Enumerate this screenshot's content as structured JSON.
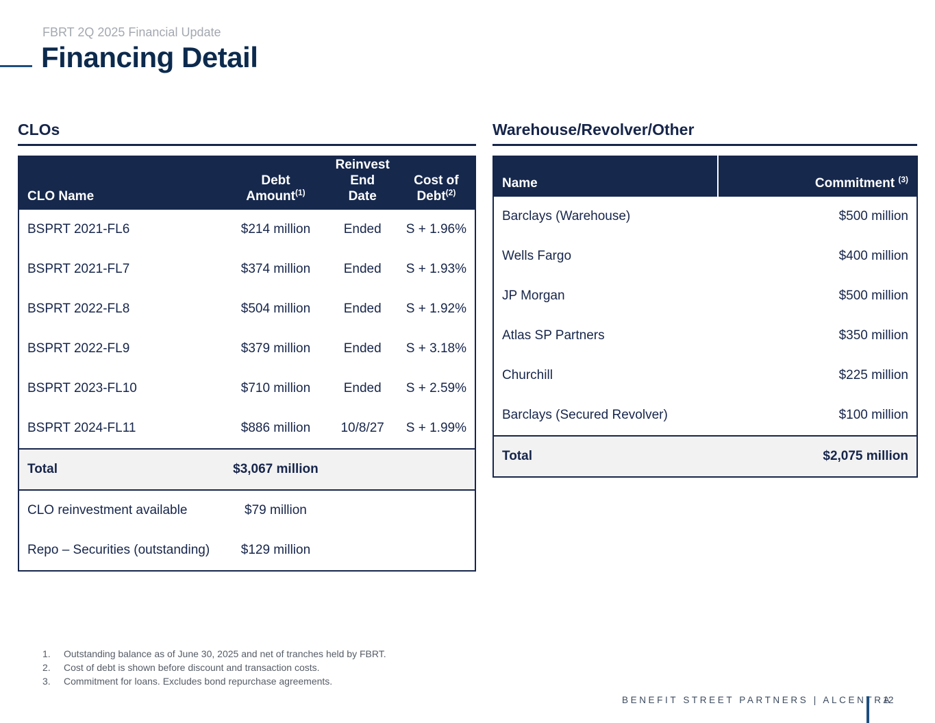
{
  "header": {
    "subtitle": "FBRT 2Q 2025 Financial Update",
    "title": "Financing Detail"
  },
  "clos": {
    "section_title": "CLOs",
    "columns": {
      "name": "CLO Name",
      "debt_line1": "Debt",
      "debt_line2": "Amount",
      "debt_sup": "(1)",
      "reinvest_line1": "Reinvest",
      "reinvest_line2": "End Date",
      "cost_line1": "Cost of",
      "cost_line2": "Debt",
      "cost_sup": "(2)"
    },
    "rows": [
      {
        "name": "BSPRT 2021-FL6",
        "debt": "$214 million",
        "reinvest": "Ended",
        "cost": "S + 1.96%"
      },
      {
        "name": "BSPRT 2021-FL7",
        "debt": "$374 million",
        "reinvest": "Ended",
        "cost": "S + 1.93%"
      },
      {
        "name": "BSPRT 2022-FL8",
        "debt": "$504 million",
        "reinvest": "Ended",
        "cost": "S + 1.92%"
      },
      {
        "name": "BSPRT 2022-FL9",
        "debt": "$379 million",
        "reinvest": "Ended",
        "cost": "S + 3.18%"
      },
      {
        "name": "BSPRT 2023-FL10",
        "debt": "$710 million",
        "reinvest": "Ended",
        "cost": "S + 2.59%"
      },
      {
        "name": "BSPRT 2024-FL11",
        "debt": "$886 million",
        "reinvest": "10/8/27",
        "cost": "S + 1.99%"
      }
    ],
    "total": {
      "label": "Total",
      "debt": "$3,067 million"
    },
    "extra_rows": [
      {
        "label": "CLO reinvestment available",
        "value": "$79 million"
      },
      {
        "label": "Repo – Securities (outstanding)",
        "value": "$129 million"
      }
    ]
  },
  "warehouse": {
    "section_title": "Warehouse/Revolver/Other",
    "columns": {
      "name": "Name",
      "commitment": "Commitment ",
      "commitment_sup": "(3)"
    },
    "rows": [
      {
        "name": "Barclays (Warehouse)",
        "commitment": "$500 million"
      },
      {
        "name": "Wells Fargo",
        "commitment": "$400 million"
      },
      {
        "name": "JP Morgan",
        "commitment": "$500 million"
      },
      {
        "name": "Atlas SP Partners",
        "commitment": "$350 million"
      },
      {
        "name": "Churchill",
        "commitment": "$225 million"
      },
      {
        "name": "Barclays (Secured Revolver)",
        "commitment": "$100 million"
      }
    ],
    "total": {
      "label": "Total",
      "commitment": "$2,075 million"
    }
  },
  "footnotes": [
    {
      "num": "1.",
      "text": "Outstanding balance as of June 30, 2025 and net of tranches held by FBRT."
    },
    {
      "num": "2.",
      "text": "Cost of debt is shown before discount and transaction costs."
    },
    {
      "num": "3.",
      "text": "Commitment for loans.  Excludes bond repurchase agreements."
    }
  ],
  "footer": {
    "brand": "BENEFIT STREET PARTNERS | ALCENTRA",
    "page_number": "12"
  },
  "colors": {
    "navy": "#16284c",
    "accent_blue": "#1d4e7e",
    "total_row_bg": "#f2f2f2"
  }
}
